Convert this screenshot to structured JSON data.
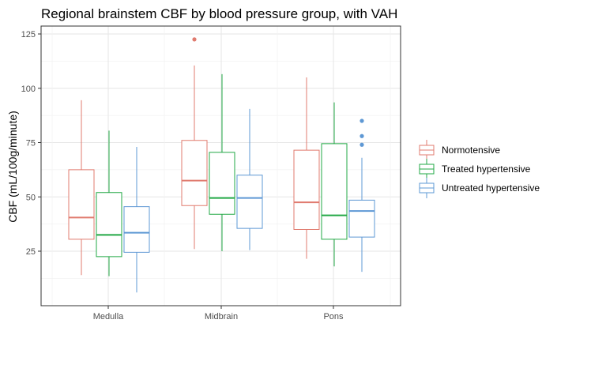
{
  "chart_data": {
    "type": "boxplot",
    "title": "Regional brainstem CBF by blood pressure group, with VAH",
    "xlabel": "",
    "ylabel": "CBF (mL/100g/minute)",
    "ylim": [
      0,
      130
    ],
    "yticks": [
      25,
      50,
      75,
      100,
      125
    ],
    "grid": true,
    "legend_position": "right",
    "categories": [
      "Medulla",
      "Midbrain",
      "Pons"
    ],
    "series": [
      {
        "name": "Normotensive",
        "color": "#E07B6F",
        "boxes": [
          {
            "min": 14,
            "q1": 30.5,
            "median": 40.5,
            "q3": 62.5,
            "max": 94.5,
            "outliers": []
          },
          {
            "min": 26,
            "q1": 46,
            "median": 57.5,
            "q3": 76,
            "max": 110.5,
            "outliers": [
              122.5
            ]
          },
          {
            "min": 21.5,
            "q1": 35,
            "median": 47.5,
            "q3": 71.5,
            "max": 105,
            "outliers": []
          }
        ]
      },
      {
        "name": "Treated hypertensive",
        "color": "#22A845",
        "boxes": [
          {
            "min": 13.5,
            "q1": 22.5,
            "median": 32.5,
            "q3": 52,
            "max": 80.5,
            "outliers": []
          },
          {
            "min": 25,
            "q1": 42,
            "median": 49.5,
            "q3": 70.5,
            "max": 106.5,
            "outliers": []
          },
          {
            "min": 18,
            "q1": 30.5,
            "median": 41.5,
            "q3": 74.5,
            "max": 93.5,
            "outliers": []
          }
        ]
      },
      {
        "name": "Untreated hypertensive",
        "color": "#5E98D4",
        "boxes": [
          {
            "min": 6,
            "q1": 24.5,
            "median": 33.5,
            "q3": 45.5,
            "max": 73,
            "outliers": []
          },
          {
            "min": 25.5,
            "q1": 35.5,
            "median": 49.5,
            "q3": 60,
            "max": 90.5,
            "outliers": []
          },
          {
            "min": 15.5,
            "q1": 31.5,
            "median": 43.5,
            "q3": 48.5,
            "max": 68,
            "outliers": [
              74,
              78,
              85
            ]
          }
        ]
      }
    ]
  }
}
